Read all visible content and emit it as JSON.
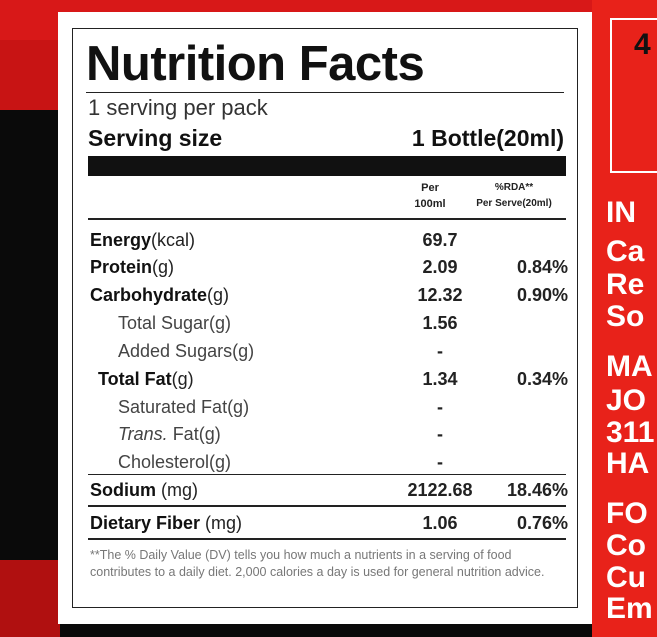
{
  "label": {
    "title": "Nutrition Facts",
    "servings": "1 serving per pack",
    "serving_size_label": "Serving size",
    "serving_size": "1 Bottle(20ml)",
    "col_per": [
      "Per",
      "100ml"
    ],
    "col_rda": [
      "%RDA**",
      "Per Serve(20ml)"
    ],
    "rows": [
      {
        "name": "Energy",
        "unit": "(kcal)",
        "per100": "69.7"
      },
      {
        "name": "Protein",
        "unit": "(g)",
        "per100": "2.09",
        "rda": "0.84%"
      },
      {
        "name": "Carbohydrate",
        "unit": "(g)",
        "per100": "12.32",
        "rda": "0.90%"
      },
      {
        "name": "Total Sugar(g)",
        "per100": "1.56"
      },
      {
        "name": "Added Sugars(g)",
        "per100": "-"
      },
      {
        "name": "Total Fat",
        "unit": "(g)",
        "per100": "1.34",
        "rda": "0.34%"
      },
      {
        "name": "Saturated Fat(g)",
        "per100": "-"
      },
      {
        "name": "Trans.",
        "unit": " Fat(g)",
        "per100": "-"
      },
      {
        "name": "Cholesterol(g)",
        "per100": "-"
      },
      {
        "name": "Sodium",
        "unit": " (mg)",
        "per100": "2122.68",
        "rda": "18.46%"
      },
      {
        "name": "Dietary Fiber",
        "unit": " (mg)",
        "per100": "1.06",
        "rda": "0.76%"
      }
    ],
    "footnote": "**The % Daily Value (DV) tells you how much a nutrients in a serving of food contributes to a daily diet. 2,000 calories a day is used for general nutrition advice."
  },
  "side_panel": {
    "top": "4",
    "lines": [
      "IN",
      "Ca",
      "Re",
      "So",
      "MA",
      "JO",
      "311",
      "HA",
      "FO",
      "Co",
      "Cu",
      "Em"
    ]
  }
}
